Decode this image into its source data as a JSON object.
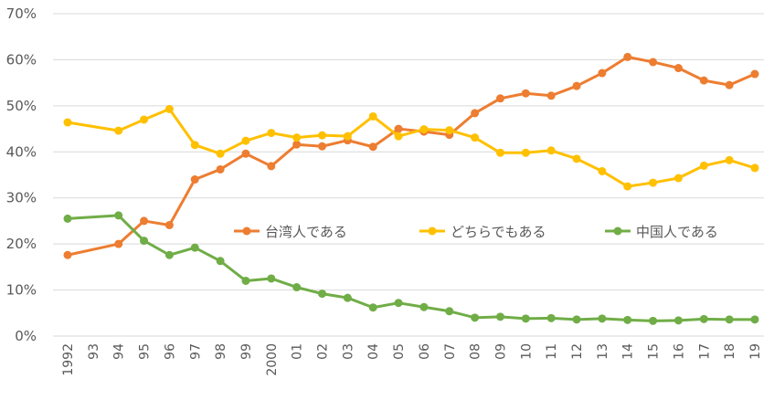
{
  "chart_data": {
    "type": "line",
    "title": "",
    "xlabel": "",
    "ylabel": "",
    "ylim": [
      0,
      70
    ],
    "yticks": [
      "0%",
      "10%",
      "20%",
      "30%",
      "40%",
      "50%",
      "60%",
      "70%"
    ],
    "grid": true,
    "legend_position": "inside-middle",
    "categories": [
      "1992",
      "93",
      "94",
      "95",
      "96",
      "97",
      "98",
      "99",
      "2000",
      "01",
      "02",
      "03",
      "04",
      "05",
      "06",
      "07",
      "08",
      "09",
      "10",
      "11",
      "12",
      "13",
      "14",
      "15",
      "16",
      "17",
      "18",
      "19"
    ],
    "series": [
      {
        "name": "台湾人である",
        "color": "#ED7D31",
        "values": [
          17.6,
          null,
          20.0,
          25.0,
          24.1,
          34.0,
          36.2,
          39.6,
          36.9,
          41.6,
          41.2,
          42.5,
          41.1,
          45.0,
          44.4,
          43.7,
          48.4,
          51.6,
          52.7,
          52.2,
          54.3,
          57.1,
          60.6,
          59.5,
          58.2,
          55.5,
          54.5,
          56.9
        ]
      },
      {
        "name": "どちらでもある",
        "color": "#FFC000",
        "values": [
          46.4,
          null,
          44.6,
          47.0,
          49.3,
          41.5,
          39.6,
          42.4,
          44.1,
          43.1,
          43.6,
          43.4,
          47.7,
          43.4,
          44.9,
          44.7,
          43.1,
          39.8,
          39.8,
          40.3,
          38.5,
          35.8,
          32.5,
          33.3,
          34.3,
          37.0,
          38.2,
          36.5
        ]
      },
      {
        "name": "中国人である",
        "color": "#70AD47",
        "values": [
          25.5,
          null,
          26.2,
          20.7,
          17.6,
          19.2,
          16.3,
          12.0,
          12.5,
          10.6,
          9.2,
          8.3,
          6.2,
          7.2,
          6.3,
          5.4,
          4.0,
          4.2,
          3.8,
          3.9,
          3.6,
          3.8,
          3.5,
          3.3,
          3.4,
          3.7,
          3.6,
          3.6
        ]
      }
    ]
  }
}
